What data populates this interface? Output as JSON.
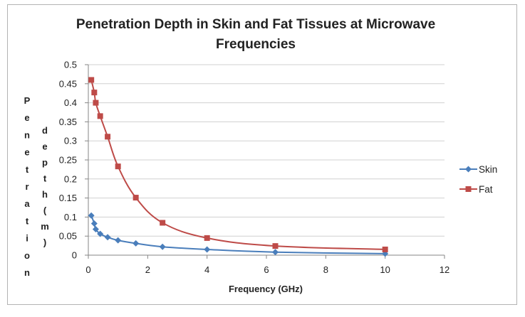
{
  "chart_data": {
    "type": "scatter",
    "title_line1": "Penetration Depth in Skin and Fat Tissues at Microwave",
    "title_line2": "Frequencies",
    "xlabel": "Frequency (GHz)",
    "ylabel_col1": "Penetration",
    "ylabel_col2": "depth(m)",
    "xlim": [
      0,
      12
    ],
    "ylim": [
      0,
      0.5
    ],
    "x_ticks": [
      "0",
      "2",
      "4",
      "6",
      "8",
      "10",
      "12"
    ],
    "y_ticks": [
      "0",
      "0.05",
      "0.1",
      "0.15",
      "0.2",
      "0.25",
      "0.3",
      "0.35",
      "0.4",
      "0.45",
      "0.5"
    ],
    "grid": true,
    "legend": "right",
    "series": [
      {
        "name": "Skin",
        "color": "#4a7ebb",
        "marker": "diamond",
        "x": [
          0.1,
          0.2,
          0.25,
          0.4,
          0.65,
          1.0,
          1.6,
          2.5,
          4.0,
          6.3,
          10.0
        ],
        "y": [
          0.104,
          0.083,
          0.068,
          0.056,
          0.047,
          0.039,
          0.031,
          0.022,
          0.015,
          0.008,
          0.004
        ]
      },
      {
        "name": "Fat",
        "color": "#be4b48",
        "marker": "square",
        "x": [
          0.1,
          0.2,
          0.25,
          0.4,
          0.65,
          1.0,
          1.6,
          2.5,
          4.0,
          6.3,
          10.0
        ],
        "y": [
          0.46,
          0.427,
          0.4,
          0.365,
          0.311,
          0.233,
          0.151,
          0.085,
          0.045,
          0.024,
          0.015
        ]
      }
    ]
  }
}
